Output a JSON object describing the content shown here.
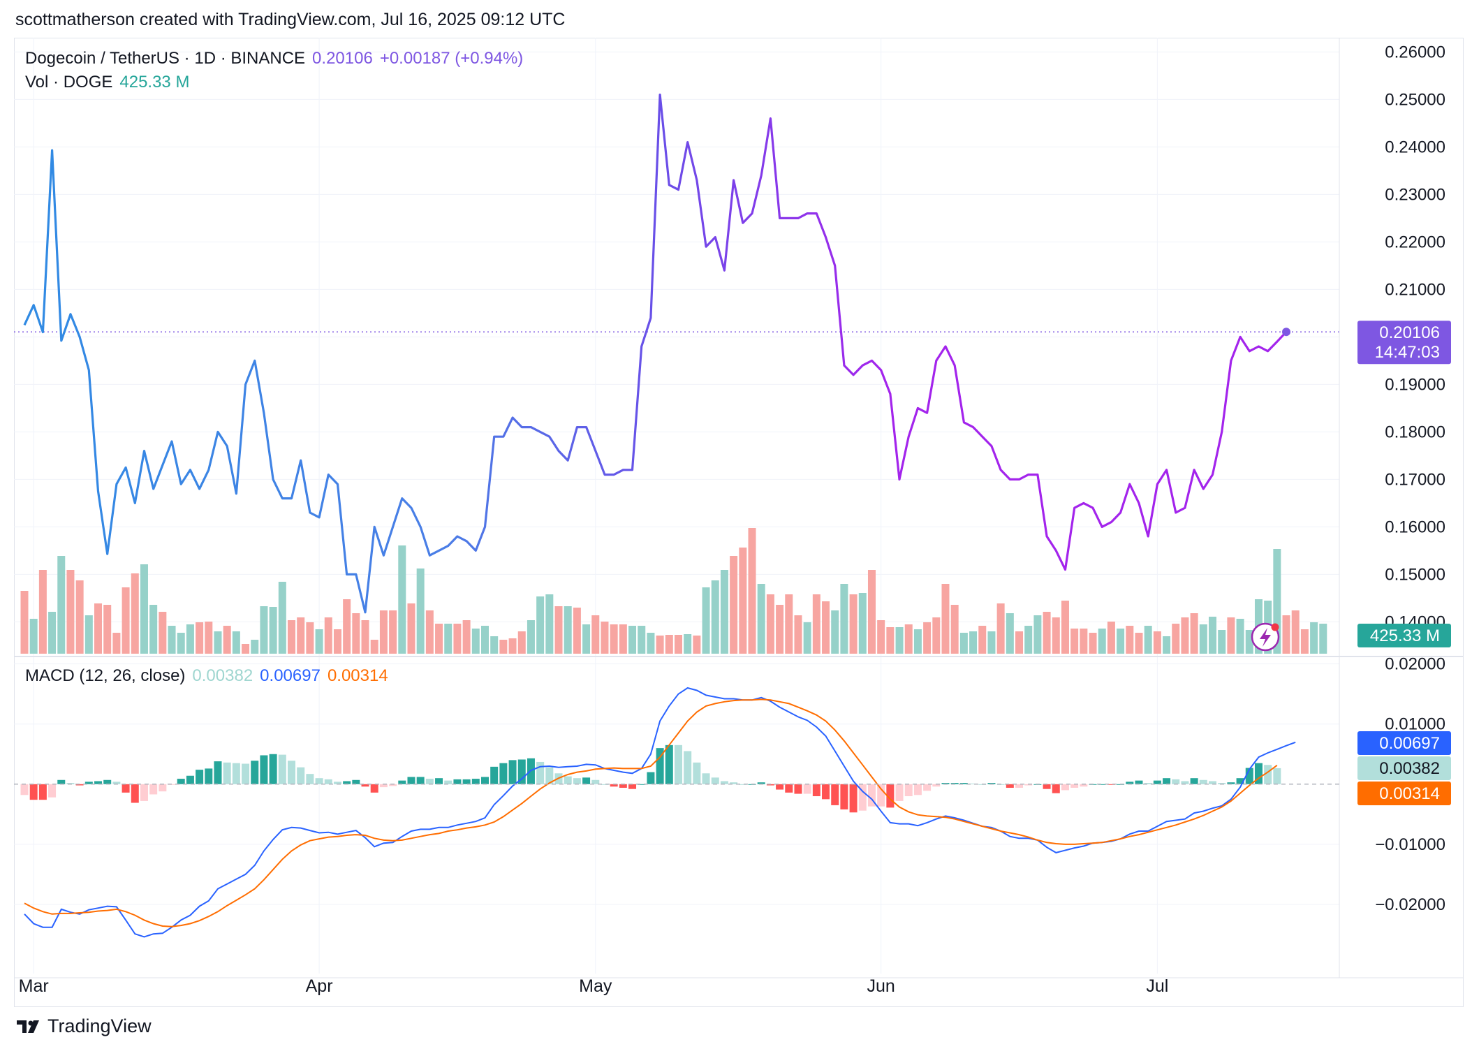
{
  "header": {
    "text": "scottmatherson created with TradingView.com, Jul 16, 2025 09:12 UTC"
  },
  "legend": {
    "symbol": "Dogecoin / TetherUS · 1D · BINANCE",
    "price": "0.20106",
    "change": "+0.00187 (+0.94%)",
    "vol_label": "Vol · DOGE",
    "vol_value": "425.33 M",
    "macd_label": "MACD (12, 26, close)",
    "macd_hist": "0.00382",
    "macd_line": "0.00697",
    "macd_signal": "0.00314"
  },
  "badges": {
    "price": "0.20106",
    "countdown": "14:47:03",
    "volume": "425.33 M",
    "macd": "0.00697",
    "hist": "0.00382",
    "signal": "0.00314"
  },
  "footer": {
    "brand": "TradingView"
  },
  "colors": {
    "up_volume": "#96d1c9",
    "down_volume": "#f7a5a1",
    "price_line_start": "#2e8be3",
    "price_line_mid": "#6a4ee8",
    "price_line_end": "#a324ec",
    "macd_line": "#2962ff",
    "signal_line": "#ff6d00",
    "hist_pos_strong": "#26a69a",
    "hist_pos_weak": "#b2dfdb",
    "hist_neg_strong": "#ff5252",
    "hist_neg_weak": "#ffcdd2",
    "last_price_badge": "#7e57e2",
    "volume_badge": "#26a69a"
  },
  "chart_data": {
    "type": "line",
    "title": "Dogecoin / TetherUS · 1D · BINANCE",
    "x_axis": {
      "start": "2025-02-28",
      "end": "2025-07-16",
      "tick_labels": [
        {
          "label": "Mar",
          "date": "2025-03-01"
        },
        {
          "label": "Apr",
          "date": "2025-04-01"
        },
        {
          "label": "May",
          "date": "2025-05-01"
        },
        {
          "label": "Jun",
          "date": "2025-06-01"
        },
        {
          "label": "Jul",
          "date": "2025-07-01"
        }
      ]
    },
    "price_axis": {
      "ylim": [
        0.133,
        0.263
      ],
      "ticks": [
        "0.26000",
        "0.25000",
        "0.24000",
        "0.23000",
        "0.22000",
        "0.21000",
        "0.20000",
        "0.19000",
        "0.18000",
        "0.17000",
        "0.16000",
        "0.15000",
        "0.14000"
      ]
    },
    "macd_axis": {
      "ylim": [
        -0.0315,
        0.021
      ],
      "ticks": [
        "0.02000",
        "0.01000",
        "−0.01000",
        "−0.02000"
      ]
    },
    "last_price": 0.20106,
    "price": [
      0.2025,
      0.2067,
      0.201,
      0.2393,
      0.1992,
      0.2048,
      0.2,
      0.193,
      0.1675,
      0.1543,
      0.169,
      0.1725,
      0.165,
      0.176,
      0.168,
      0.173,
      0.178,
      0.169,
      0.172,
      0.168,
      0.172,
      0.18,
      0.177,
      0.167,
      0.19,
      0.195,
      0.184,
      0.17,
      0.166,
      0.166,
      0.174,
      0.163,
      0.162,
      0.171,
      0.169,
      0.15,
      0.15,
      0.142,
      0.16,
      0.154,
      0.16,
      0.166,
      0.164,
      0.16,
      0.154,
      0.155,
      0.156,
      0.158,
      0.157,
      0.155,
      0.16,
      0.179,
      0.179,
      0.183,
      0.181,
      0.181,
      0.18,
      0.179,
      0.176,
      0.174,
      0.181,
      0.181,
      0.176,
      0.171,
      0.171,
      0.172,
      0.172,
      0.198,
      0.204,
      0.251,
      0.232,
      0.231,
      0.241,
      0.233,
      0.219,
      0.221,
      0.214,
      0.233,
      0.224,
      0.226,
      0.234,
      0.246,
      0.225,
      0.225,
      0.225,
      0.226,
      0.226,
      0.221,
      0.215,
      0.194,
      0.192,
      0.194,
      0.195,
      0.193,
      0.188,
      0.17,
      0.179,
      0.185,
      0.184,
      0.195,
      0.198,
      0.194,
      0.182,
      0.181,
      0.179,
      0.177,
      0.172,
      0.17,
      0.17,
      0.171,
      0.171,
      0.158,
      0.155,
      0.151,
      0.164,
      0.165,
      0.164,
      0.16,
      0.161,
      0.163,
      0.169,
      0.165,
      0.158,
      0.169,
      0.172,
      0.163,
      0.164,
      0.172,
      0.168,
      0.171,
      0.18,
      0.195,
      0.2,
      0.197,
      0.198,
      0.197,
      0.199,
      0.20106
    ],
    "volume": [
      {
        "v": 0.9,
        "up": false
      },
      {
        "v": 0.5,
        "up": true
      },
      {
        "v": 1.2,
        "up": false
      },
      {
        "v": 0.6,
        "up": true
      },
      {
        "v": 1.4,
        "up": true
      },
      {
        "v": 1.2,
        "up": false
      },
      {
        "v": 1.05,
        "up": false
      },
      {
        "v": 0.55,
        "up": true
      },
      {
        "v": 0.72,
        "up": false
      },
      {
        "v": 0.7,
        "up": false
      },
      {
        "v": 0.3,
        "up": false
      },
      {
        "v": 0.95,
        "up": false
      },
      {
        "v": 1.15,
        "up": false
      },
      {
        "v": 1.28,
        "up": true
      },
      {
        "v": 0.7,
        "up": true
      },
      {
        "v": 0.6,
        "up": false
      },
      {
        "v": 0.4,
        "up": true
      },
      {
        "v": 0.3,
        "up": true
      },
      {
        "v": 0.42,
        "up": true
      },
      {
        "v": 0.45,
        "up": false
      },
      {
        "v": 0.46,
        "up": false
      },
      {
        "v": 0.32,
        "up": true
      },
      {
        "v": 0.4,
        "up": false
      },
      {
        "v": 0.32,
        "up": true
      },
      {
        "v": 0.14,
        "up": false
      },
      {
        "v": 0.2,
        "up": true
      },
      {
        "v": 0.68,
        "up": true
      },
      {
        "v": 0.67,
        "up": true
      },
      {
        "v": 1.03,
        "up": true
      },
      {
        "v": 0.48,
        "up": false
      },
      {
        "v": 0.52,
        "up": false
      },
      {
        "v": 0.45,
        "up": false
      },
      {
        "v": 0.35,
        "up": true
      },
      {
        "v": 0.52,
        "up": false
      },
      {
        "v": 0.35,
        "up": false
      },
      {
        "v": 0.78,
        "up": false
      },
      {
        "v": 0.58,
        "up": false
      },
      {
        "v": 0.48,
        "up": false
      },
      {
        "v": 0.2,
        "up": false
      },
      {
        "v": 0.62,
        "up": false
      },
      {
        "v": 0.62,
        "up": false
      },
      {
        "v": 1.55,
        "up": true
      },
      {
        "v": 0.72,
        "up": false
      },
      {
        "v": 1.22,
        "up": true
      },
      {
        "v": 0.62,
        "up": false
      },
      {
        "v": 0.43,
        "up": false
      },
      {
        "v": 0.43,
        "up": true
      },
      {
        "v": 0.43,
        "up": false
      },
      {
        "v": 0.48,
        "up": false
      },
      {
        "v": 0.36,
        "up": true
      },
      {
        "v": 0.4,
        "up": true
      },
      {
        "v": 0.25,
        "up": true
      },
      {
        "v": 0.2,
        "up": false
      },
      {
        "v": 0.22,
        "up": false
      },
      {
        "v": 0.32,
        "up": false
      },
      {
        "v": 0.48,
        "up": true
      },
      {
        "v": 0.82,
        "up": true
      },
      {
        "v": 0.85,
        "up": true
      },
      {
        "v": 0.68,
        "up": false
      },
      {
        "v": 0.68,
        "up": true
      },
      {
        "v": 0.66,
        "up": false
      },
      {
        "v": 0.42,
        "up": true
      },
      {
        "v": 0.55,
        "up": false
      },
      {
        "v": 0.46,
        "up": false
      },
      {
        "v": 0.42,
        "up": false
      },
      {
        "v": 0.42,
        "up": false
      },
      {
        "v": 0.4,
        "up": true
      },
      {
        "v": 0.4,
        "up": true
      },
      {
        "v": 0.3,
        "up": true
      },
      {
        "v": 0.26,
        "up": false
      },
      {
        "v": 0.27,
        "up": false
      },
      {
        "v": 0.27,
        "up": false
      },
      {
        "v": 0.28,
        "up": true
      },
      {
        "v": 0.26,
        "up": false
      },
      {
        "v": 0.95,
        "up": true
      },
      {
        "v": 1.05,
        "up": true
      },
      {
        "v": 1.2,
        "up": true
      },
      {
        "v": 1.4,
        "up": false
      },
      {
        "v": 1.52,
        "up": false
      },
      {
        "v": 1.8,
        "up": false
      },
      {
        "v": 1.0,
        "up": true
      },
      {
        "v": 0.85,
        "up": false
      },
      {
        "v": 0.7,
        "up": false
      },
      {
        "v": 0.85,
        "up": false
      },
      {
        "v": 0.55,
        "up": false
      },
      {
        "v": 0.45,
        "up": true
      },
      {
        "v": 0.85,
        "up": false
      },
      {
        "v": 0.75,
        "up": false
      },
      {
        "v": 0.62,
        "up": true
      },
      {
        "v": 1.0,
        "up": true
      },
      {
        "v": 0.85,
        "up": false
      },
      {
        "v": 0.87,
        "up": true
      },
      {
        "v": 1.2,
        "up": false
      },
      {
        "v": 0.48,
        "up": false
      },
      {
        "v": 0.38,
        "up": false
      },
      {
        "v": 0.38,
        "up": true
      },
      {
        "v": 0.42,
        "up": false
      },
      {
        "v": 0.35,
        "up": true
      },
      {
        "v": 0.45,
        "up": false
      },
      {
        "v": 0.52,
        "up": false
      },
      {
        "v": 1.0,
        "up": false
      },
      {
        "v": 0.7,
        "up": false
      },
      {
        "v": 0.3,
        "up": true
      },
      {
        "v": 0.32,
        "up": true
      },
      {
        "v": 0.4,
        "up": false
      },
      {
        "v": 0.32,
        "up": true
      },
      {
        "v": 0.72,
        "up": false
      },
      {
        "v": 0.58,
        "up": true
      },
      {
        "v": 0.32,
        "up": false
      },
      {
        "v": 0.4,
        "up": true
      },
      {
        "v": 0.55,
        "up": true
      },
      {
        "v": 0.6,
        "up": false
      },
      {
        "v": 0.52,
        "up": false
      },
      {
        "v": 0.76,
        "up": false
      },
      {
        "v": 0.36,
        "up": false
      },
      {
        "v": 0.36,
        "up": false
      },
      {
        "v": 0.3,
        "up": false
      },
      {
        "v": 0.36,
        "up": true
      },
      {
        "v": 0.46,
        "up": false
      },
      {
        "v": 0.36,
        "up": true
      },
      {
        "v": 0.4,
        "up": false
      },
      {
        "v": 0.3,
        "up": false
      },
      {
        "v": 0.4,
        "up": true
      },
      {
        "v": 0.32,
        "up": false
      },
      {
        "v": 0.25,
        "up": true
      },
      {
        "v": 0.43,
        "up": false
      },
      {
        "v": 0.52,
        "up": false
      },
      {
        "v": 0.58,
        "up": false
      },
      {
        "v": 0.42,
        "up": true
      },
      {
        "v": 0.53,
        "up": true
      },
      {
        "v": 0.34,
        "up": true
      },
      {
        "v": 0.52,
        "up": false
      },
      {
        "v": 0.5,
        "up": true
      },
      {
        "v": 0.34,
        "up": true
      },
      {
        "v": 0.78,
        "up": true
      },
      {
        "v": 0.76,
        "up": true
      },
      {
        "v": 1.5,
        "up": true
      },
      {
        "v": 0.55,
        "up": false
      },
      {
        "v": 0.62,
        "up": false
      },
      {
        "v": 0.35,
        "up": false
      },
      {
        "v": 0.45,
        "up": true
      },
      {
        "v": 0.43,
        "up": true
      }
    ],
    "macd": [
      -0.0216,
      -0.0232,
      -0.0238,
      -0.0238,
      -0.0208,
      -0.0213,
      -0.0216,
      -0.0209,
      -0.0206,
      -0.0203,
      -0.0204,
      -0.0226,
      -0.0249,
      -0.0254,
      -0.0249,
      -0.0248,
      -0.0238,
      -0.0226,
      -0.0218,
      -0.0203,
      -0.0194,
      -0.0174,
      -0.0166,
      -0.0158,
      -0.015,
      -0.0135,
      -0.0111,
      -0.0092,
      -0.0076,
      -0.0072,
      -0.0073,
      -0.0077,
      -0.0081,
      -0.008,
      -0.0083,
      -0.008,
      -0.0077,
      -0.0089,
      -0.0104,
      -0.0098,
      -0.0097,
      -0.0087,
      -0.0078,
      -0.0075,
      -0.0075,
      -0.0072,
      -0.0072,
      -0.0068,
      -0.0065,
      -0.0062,
      -0.0056,
      -0.0034,
      -0.0019,
      -0.0003,
      0.0009,
      0.0023,
      0.0029,
      0.003,
      0.0028,
      0.0029,
      0.003,
      0.0033,
      0.0032,
      0.0026,
      0.0023,
      0.002,
      0.0018,
      0.0026,
      0.005,
      0.0105,
      0.013,
      0.015,
      0.016,
      0.0156,
      0.0148,
      0.0145,
      0.0142,
      0.0142,
      0.014,
      0.014,
      0.0144,
      0.0138,
      0.0128,
      0.012,
      0.0112,
      0.0106,
      0.0095,
      0.008,
      0.0055,
      0.003,
      0.0005,
      -0.0012,
      -0.0025,
      -0.0045,
      -0.0064,
      -0.0066,
      -0.0066,
      -0.0069,
      -0.0064,
      -0.0058,
      -0.0053,
      -0.0056,
      -0.006,
      -0.0065,
      -0.007,
      -0.0072,
      -0.0078,
      -0.0087,
      -0.009,
      -0.009,
      -0.0093,
      -0.0105,
      -0.0114,
      -0.011,
      -0.0106,
      -0.0103,
      -0.0098,
      -0.0097,
      -0.0095,
      -0.0091,
      -0.0083,
      -0.0078,
      -0.0078,
      -0.007,
      -0.0062,
      -0.006,
      -0.0058,
      -0.0048,
      -0.0045,
      -0.004,
      -0.0036,
      -0.0025,
      -0.0005,
      0.0025,
      0.0045,
      0.0052,
      0.0058,
      0.0064,
      0.00697
    ],
    "signal": [
      -0.0198,
      -0.0206,
      -0.0212,
      -0.0216,
      -0.0215,
      -0.0215,
      -0.0214,
      -0.0213,
      -0.0211,
      -0.021,
      -0.0208,
      -0.0212,
      -0.0218,
      -0.0226,
      -0.0232,
      -0.0236,
      -0.0237,
      -0.0235,
      -0.0232,
      -0.0227,
      -0.022,
      -0.0212,
      -0.0202,
      -0.0193,
      -0.0184,
      -0.0174,
      -0.0159,
      -0.0142,
      -0.0125,
      -0.0111,
      -0.0101,
      -0.0094,
      -0.0091,
      -0.0088,
      -0.0087,
      -0.0085,
      -0.0084,
      -0.0085,
      -0.009,
      -0.0093,
      -0.0094,
      -0.0093,
      -0.009,
      -0.0087,
      -0.0084,
      -0.0082,
      -0.0078,
      -0.0076,
      -0.0073,
      -0.0071,
      -0.0068,
      -0.0063,
      -0.0054,
      -0.0043,
      -0.0032,
      -0.002,
      -0.0008,
      0.0002,
      0.001,
      0.0016,
      0.002,
      0.0022,
      0.0025,
      0.0026,
      0.0027,
      0.0026,
      0.0026,
      0.0026,
      0.003,
      0.0045,
      0.0065,
      0.0085,
      0.0105,
      0.012,
      0.013,
      0.0134,
      0.0137,
      0.0139,
      0.014,
      0.014,
      0.0141,
      0.014,
      0.0137,
      0.0134,
      0.0128,
      0.0122,
      0.0115,
      0.0105,
      0.009,
      0.0072,
      0.0052,
      0.0032,
      0.0012,
      -0.0008,
      -0.0025,
      -0.0038,
      -0.0046,
      -0.0051,
      -0.0053,
      -0.0054,
      -0.0055,
      -0.0058,
      -0.0062,
      -0.0066,
      -0.007,
      -0.0074,
      -0.0078,
      -0.0081,
      -0.0084,
      -0.0088,
      -0.0093,
      -0.0097,
      -0.0099,
      -0.01,
      -0.01,
      -0.0099,
      -0.0098,
      -0.0097,
      -0.0094,
      -0.0091,
      -0.0087,
      -0.0084,
      -0.008,
      -0.0076,
      -0.0072,
      -0.0068,
      -0.0063,
      -0.0058,
      -0.0052,
      -0.0045,
      -0.0038,
      -0.0028,
      -0.0015,
      -0.0002,
      0.001,
      0.002,
      0.00314
    ],
    "legend": [
      "Vol · DOGE",
      "MACD (12, 26, close)"
    ],
    "grid": true
  }
}
